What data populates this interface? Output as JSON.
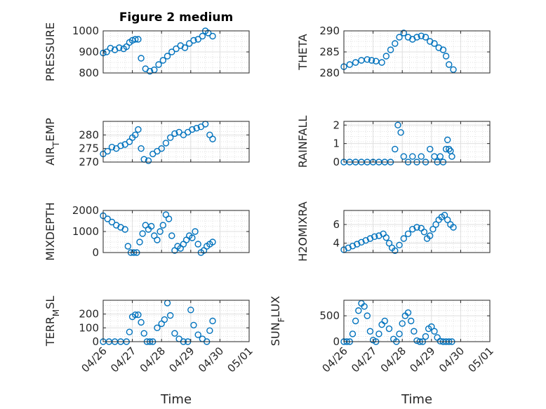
{
  "figure": {
    "title": "Figure 2 medium",
    "xlabel": "Time",
    "marker_color": "#0072BD",
    "x_tick_labels": [
      "04/26",
      "04/27",
      "04/28",
      "04/29",
      "04/30",
      "05/01"
    ]
  },
  "chart_data": [
    {
      "type": "scatter",
      "ylabel": "PRESSURE",
      "title": "Figure 2 medium",
      "xlim": [
        "04/26",
        "05/01"
      ],
      "ylim": [
        800,
        1000
      ],
      "yticks": [
        800,
        900,
        1000
      ],
      "grid": true,
      "x": [
        0,
        0.12,
        0.25,
        0.4,
        0.55,
        0.7,
        0.8,
        0.9,
        1.0,
        1.1,
        1.2,
        1.3,
        1.45,
        1.6,
        1.75,
        1.9,
        2.05,
        2.2,
        2.35,
        2.5,
        2.65,
        2.8,
        2.95,
        3.1,
        3.25,
        3.4,
        3.5,
        3.6,
        3.75
      ],
      "y": [
        895,
        900,
        918,
        910,
        920,
        915,
        925,
        945,
        955,
        960,
        960,
        870,
        820,
        808,
        815,
        840,
        860,
        880,
        900,
        915,
        930,
        920,
        940,
        955,
        960,
        975,
        1000,
        990,
        975
      ]
    },
    {
      "type": "scatter",
      "ylabel": "THETA",
      "title": "",
      "xlim": [
        "04/26",
        "05/01"
      ],
      "ylim": [
        280,
        290
      ],
      "yticks": [
        280,
        285,
        290
      ],
      "grid": true,
      "x": [
        0,
        0.2,
        0.4,
        0.6,
        0.8,
        0.95,
        1.1,
        1.3,
        1.45,
        1.6,
        1.75,
        1.9,
        2.05,
        2.2,
        2.35,
        2.5,
        2.65,
        2.8,
        2.95,
        3.1,
        3.25,
        3.4,
        3.5,
        3.6,
        3.75
      ],
      "y": [
        281.5,
        282,
        282.5,
        283,
        283.2,
        283,
        282.8,
        282.5,
        284,
        285.5,
        287,
        288.5,
        289.5,
        288.5,
        288,
        288.5,
        288.8,
        288.5,
        287.5,
        287,
        286,
        285.5,
        284,
        282,
        280.8
      ]
    },
    {
      "type": "scatter",
      "ylabel": "AIR_TEMP",
      "title": "",
      "xlim": [
        "04/26",
        "05/01"
      ],
      "ylim": [
        270,
        285
      ],
      "yticks": [
        270,
        275,
        280
      ],
      "grid": true,
      "x": [
        0,
        0.15,
        0.3,
        0.45,
        0.6,
        0.75,
        0.9,
        1.0,
        1.1,
        1.2,
        1.3,
        1.4,
        1.55,
        1.7,
        1.85,
        2.0,
        2.15,
        2.3,
        2.45,
        2.6,
        2.75,
        2.9,
        3.05,
        3.2,
        3.35,
        3.5,
        3.65,
        3.75
      ],
      "y": [
        273,
        274,
        275.5,
        275,
        276,
        276.5,
        277.5,
        279,
        280,
        282,
        275,
        271,
        270.5,
        273,
        274,
        275,
        277,
        279,
        280.5,
        281,
        280,
        281,
        282,
        282.5,
        283,
        284,
        280,
        278.5
      ]
    },
    {
      "type": "scatter",
      "ylabel": "RAINFALL",
      "title": "",
      "xlim": [
        "04/26",
        "05/01"
      ],
      "ylim": [
        0,
        2.2
      ],
      "yticks": [
        0,
        1,
        2
      ],
      "grid": true,
      "x": [
        0,
        0.2,
        0.4,
        0.6,
        0.8,
        1.0,
        1.2,
        1.4,
        1.6,
        1.75,
        1.85,
        1.95,
        2.05,
        2.2,
        2.35,
        2.5,
        2.65,
        2.8,
        2.95,
        3.1,
        3.2,
        3.3,
        3.4,
        3.5,
        3.55,
        3.6,
        3.65,
        3.7
      ],
      "y": [
        0,
        0,
        0,
        0,
        0,
        0,
        0,
        0,
        0,
        0.7,
        2.0,
        1.6,
        0.3,
        0,
        0.3,
        0,
        0.3,
        0,
        0.7,
        0.3,
        0,
        0.3,
        0,
        0.7,
        1.2,
        0.7,
        0.6,
        0.3
      ]
    },
    {
      "type": "scatter",
      "ylabel": "MIXDEPTH",
      "title": "",
      "xlim": [
        "04/26",
        "05/01"
      ],
      "ylim": [
        0,
        2000
      ],
      "yticks": [
        0,
        1000,
        2000
      ],
      "grid": true,
      "x": [
        0,
        0.15,
        0.3,
        0.45,
        0.6,
        0.75,
        0.85,
        0.95,
        1.05,
        1.15,
        1.25,
        1.35,
        1.45,
        1.55,
        1.65,
        1.75,
        1.85,
        1.95,
        2.05,
        2.15,
        2.25,
        2.35,
        2.45,
        2.55,
        2.65,
        2.75,
        2.85,
        2.95,
        3.05,
        3.15,
        3.25,
        3.35,
        3.45,
        3.55,
        3.65,
        3.75
      ],
      "y": [
        1750,
        1600,
        1450,
        1300,
        1200,
        1100,
        300,
        0,
        0,
        0,
        500,
        900,
        1300,
        1100,
        1250,
        800,
        600,
        1000,
        1300,
        1800,
        1600,
        800,
        100,
        300,
        200,
        400,
        600,
        800,
        700,
        1000,
        400,
        0,
        100,
        300,
        400,
        500
      ]
    },
    {
      "type": "scatter",
      "ylabel": "H2OMIXRA",
      "title": "",
      "xlim": [
        "04/26",
        "05/01"
      ],
      "ylim": [
        3,
        7.5
      ],
      "yticks": [
        4,
        6
      ],
      "grid": true,
      "x": [
        0,
        0.15,
        0.3,
        0.45,
        0.6,
        0.75,
        0.9,
        1.05,
        1.2,
        1.35,
        1.45,
        1.55,
        1.65,
        1.75,
        1.9,
        2.05,
        2.2,
        2.35,
        2.5,
        2.65,
        2.75,
        2.85,
        2.95,
        3.05,
        3.15,
        3.25,
        3.35,
        3.45,
        3.55,
        3.65,
        3.75
      ],
      "y": [
        3.3,
        3.5,
        3.7,
        3.9,
        4.1,
        4.3,
        4.5,
        4.7,
        4.8,
        5.0,
        4.6,
        4.0,
        3.5,
        3.2,
        3.8,
        4.5,
        5.0,
        5.5,
        5.7,
        5.6,
        5.2,
        4.5,
        4.8,
        5.5,
        6.0,
        6.5,
        6.8,
        7.0,
        6.5,
        6.0,
        5.7
      ]
    },
    {
      "type": "scatter",
      "ylabel": "TERR_MSL",
      "title": "",
      "xlim": [
        "04/26",
        "05/01"
      ],
      "ylim": [
        0,
        300
      ],
      "yticks": [
        0,
        100,
        200
      ],
      "grid": true,
      "x": [
        0,
        0.2,
        0.4,
        0.6,
        0.8,
        0.9,
        1.0,
        1.1,
        1.2,
        1.3,
        1.4,
        1.5,
        1.6,
        1.7,
        1.85,
        2.0,
        2.1,
        2.2,
        2.3,
        2.45,
        2.6,
        2.75,
        2.9,
        3.0,
        3.1,
        3.25,
        3.4,
        3.55,
        3.65,
        3.75
      ],
      "y": [
        0,
        0,
        0,
        0,
        0,
        70,
        180,
        195,
        195,
        140,
        60,
        0,
        0,
        0,
        100,
        130,
        160,
        280,
        190,
        60,
        20,
        0,
        0,
        230,
        120,
        50,
        20,
        0,
        80,
        150
      ]
    },
    {
      "type": "scatter",
      "ylabel": "SUN_FLUX",
      "title": "",
      "xlim": [
        "04/26",
        "05/01"
      ],
      "ylim": [
        0,
        800
      ],
      "yticks": [
        0,
        500
      ],
      "grid": true,
      "x": [
        0,
        0.1,
        0.2,
        0.3,
        0.4,
        0.5,
        0.6,
        0.7,
        0.8,
        0.9,
        1.0,
        1.1,
        1.2,
        1.3,
        1.4,
        1.55,
        1.7,
        1.8,
        1.9,
        2.0,
        2.1,
        2.2,
        2.3,
        2.4,
        2.5,
        2.6,
        2.7,
        2.8,
        2.9,
        3.0,
        3.1,
        3.2,
        3.3,
        3.4,
        3.5,
        3.6,
        3.7
      ],
      "y": [
        0,
        0,
        0,
        150,
        400,
        600,
        740,
        680,
        500,
        200,
        30,
        0,
        150,
        330,
        400,
        250,
        50,
        0,
        150,
        350,
        500,
        560,
        400,
        200,
        20,
        0,
        0,
        100,
        250,
        290,
        200,
        80,
        10,
        0,
        0,
        0,
        0
      ]
    }
  ]
}
